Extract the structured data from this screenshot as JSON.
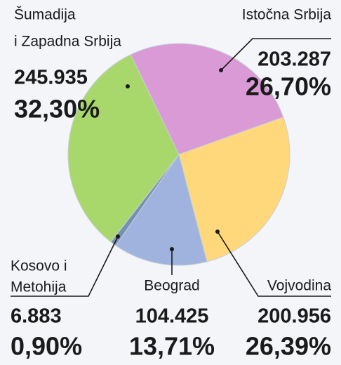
{
  "chart_data": {
    "type": "pie",
    "labels": [
      [
        "Istočna Srbija"
      ],
      [
        "Vojvodina"
      ],
      [
        "Beograd"
      ],
      [
        "Kosovo i",
        "Metohija"
      ],
      [
        "Šumadija",
        "i Zapadna Srbija"
      ]
    ],
    "values": [
      26.7,
      26.39,
      13.71,
      0.9,
      32.3
    ],
    "value_labels": [
      "26,70%",
      "26,39%",
      "13,71%",
      "0,90%",
      "32,30%"
    ],
    "counts": [
      203287,
      200956,
      104425,
      6883,
      245935
    ],
    "count_labels": [
      "203.287",
      "200.956",
      "104.425",
      "6.883",
      "245.935"
    ],
    "colors": [
      "#d99ad6",
      "#ffd87c",
      "#9fb3de",
      "#7591b3",
      "#a8d86c"
    ]
  }
}
